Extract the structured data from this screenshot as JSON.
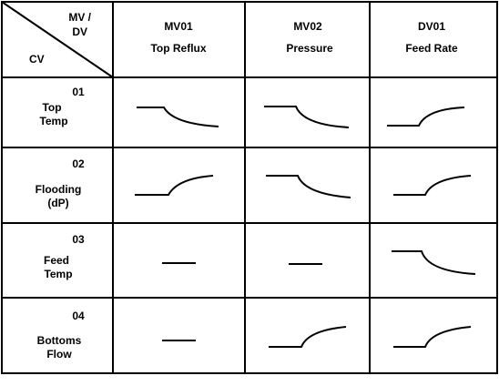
{
  "table": {
    "corner": {
      "mv_dv": [
        "MV /",
        "DV"
      ],
      "cv": "CV"
    },
    "columns": [
      {
        "id": "MV01",
        "name": "Top Reflux"
      },
      {
        "id": "MV02",
        "name": "Pressure"
      },
      {
        "id": "DV01",
        "name": "Feed Rate"
      }
    ],
    "rows": [
      {
        "id": "01",
        "name": [
          "Top",
          "Temp"
        ]
      },
      {
        "id": "02",
        "name": [
          "Flooding",
          "(dP)"
        ]
      },
      {
        "id": "03",
        "name": [
          "Feed",
          "Temp"
        ]
      },
      {
        "id": "04",
        "name": [
          "Bottoms",
          "Flow"
        ]
      }
    ]
  }
}
